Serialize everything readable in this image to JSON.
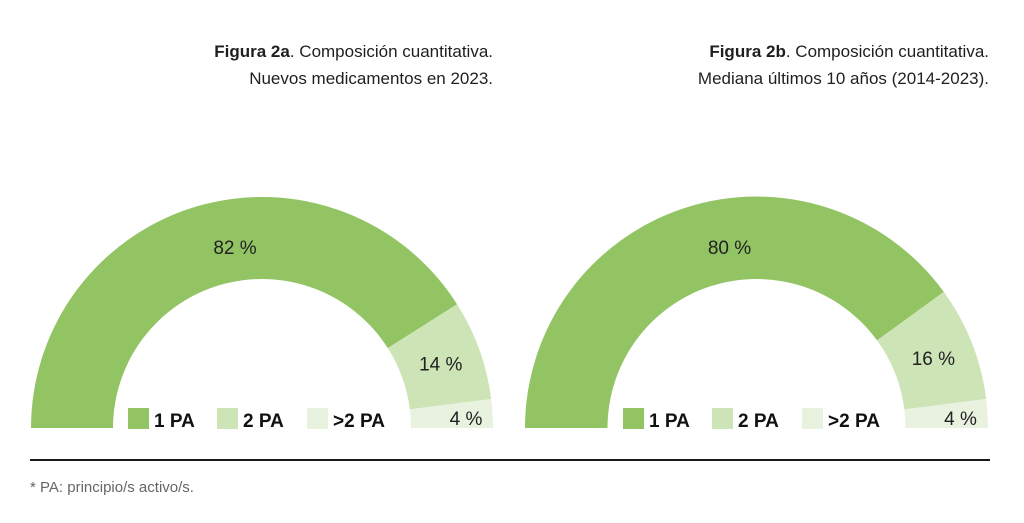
{
  "figures": [
    {
      "title_bold": "Figura 2a",
      "title_rest": ". Composición cuantitativa.",
      "subtitle": "Nuevos medicamentos en 2023."
    },
    {
      "title_bold": "Figura 2b",
      "title_rest": ". Composición cuantitativa.",
      "subtitle": "Mediana últimos 10 años (2014-2023)."
    }
  ],
  "legend": [
    {
      "label": "1 PA",
      "color": "#92c464"
    },
    {
      "label": "2 PA",
      "color": "#cde4b6"
    },
    {
      "label": ">2 PA",
      "color": "#e8f2df"
    }
  ],
  "footnote": "* PA: principio/s activo/s.",
  "chart_data": [
    {
      "type": "pie",
      "variant": "half-donut",
      "title": "Figura 2a. Composición cuantitativa. Nuevos medicamentos en 2023.",
      "categories": [
        "1 PA",
        "2 PA",
        ">2 PA"
      ],
      "values": [
        82,
        14,
        4
      ],
      "labels": [
        "82 %",
        "14 %",
        "4 %"
      ],
      "unit": "%",
      "colors": [
        "#92c464",
        "#cde4b6",
        "#e8f2df"
      ],
      "legend_position": "bottom-center-inside"
    },
    {
      "type": "pie",
      "variant": "half-donut",
      "title": "Figura 2b. Composición cuantitativa. Mediana últimos 10 años (2014-2023).",
      "categories": [
        "1 PA",
        "2 PA",
        ">2 PA"
      ],
      "values": [
        80,
        16,
        4
      ],
      "labels": [
        "80 %",
        "16 %",
        "4 %"
      ],
      "unit": "%",
      "colors": [
        "#92c464",
        "#cde4b6",
        "#e8f2df"
      ],
      "legend_position": "bottom-center-inside"
    }
  ]
}
